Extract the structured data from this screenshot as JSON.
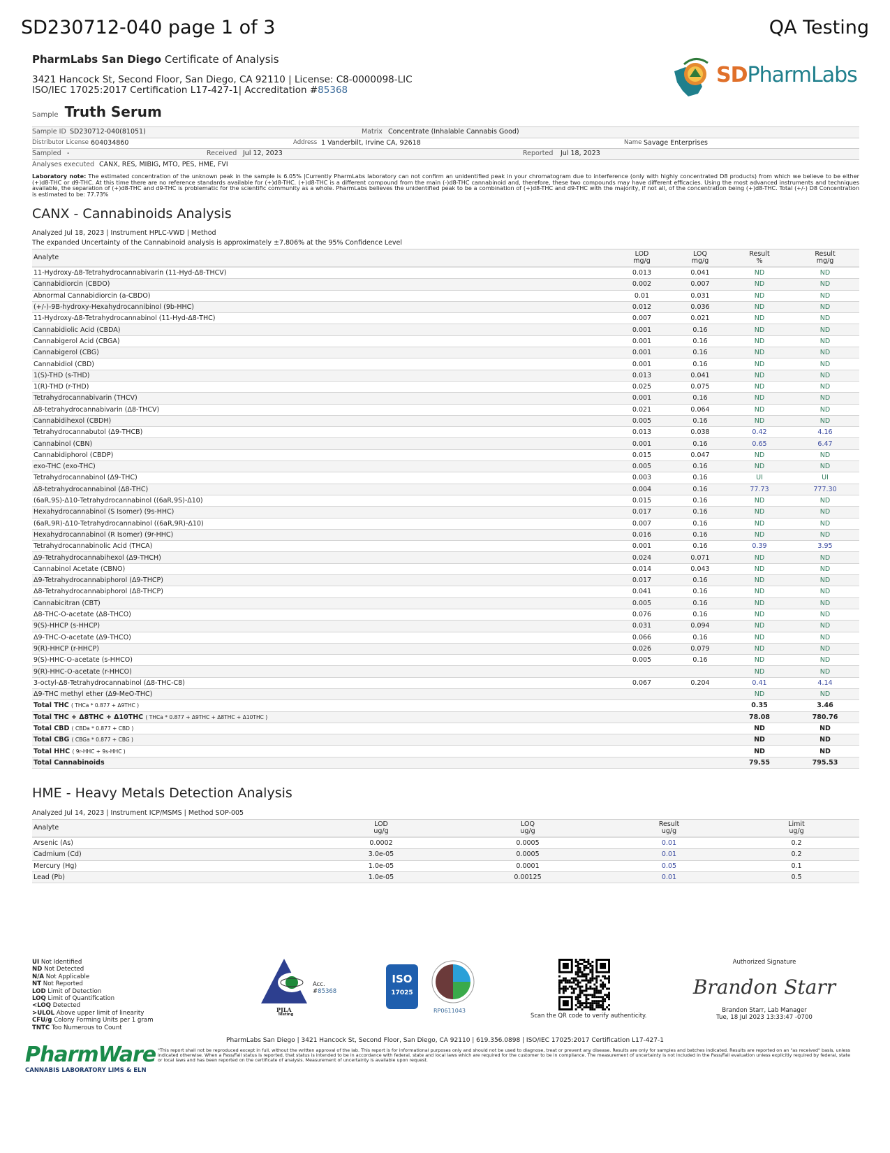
{
  "header": {
    "doc_title": "SD230712-040 page 1 of 3",
    "qa_title": "QA Testing",
    "lab_name": "PharmLabs San Diego",
    "doc_type": "Certificate of Analysis",
    "address_line": "3421 Hancock St, Second Floor, San Diego, CA 92110 |  License: C8-0000098-LIC",
    "cert_line": "ISO/IEC 17025:2017 Certification L17-427-1|  Accreditation #",
    "accreditation_no": "85368",
    "logo_text_sd": "SD",
    "logo_text_pharmlabs": "PharmLabs",
    "logo_badge_text": "PharmLabs",
    "brand_colors": {
      "orange": "#e0702a",
      "teal": "#1f7f8c"
    }
  },
  "sample": {
    "label": "Sample",
    "name": "Truth Serum",
    "id_label": "Sample ID",
    "id": "SD230712-040(81051)",
    "matrix_label": "Matrix",
    "matrix": "Concentrate (Inhalable Cannabis Good)",
    "distributor_label": "Distributor License",
    "distributor": "604034860",
    "address_label": "Address",
    "address": "1 Vanderbilt, Irvine CA, 92618",
    "name_label": "Name",
    "client_name": "Savage Enterprises",
    "sampled_label": "Sampled",
    "sampled": "-",
    "received_label": "Received",
    "received": "Jul 12, 2023",
    "reported_label": "Reported",
    "reported": "Jul 18, 2023",
    "analyses_label": "Analyses executed",
    "analyses": "CANX, RES, MIBIG, MTO, PES, HME, FVI"
  },
  "lab_note": {
    "label": "Laboratory note:",
    "text": " The estimated concentration of the unknown peak in the sample is 6.05% |Currently PharmLabs laboratory can not confirm an unidentified peak in your chromatogram due to interference (only with highly concentrated D8 products) from which we believe to be either (+)d8-THC or d9-THC. At this time there are no reference standards available for (+)d8-THC. (+)d8-THC is a different compound from the main (-)d8-THC cannabinoid and, therefore, these two compounds may have different efficacies. Using the most advanced instruments and techniques available, the separation of (+)d8-THC and d9-THC is problematic for the scientific community as a whole. PharmLabs believes the unidentified peak to be a combination of (+)d8-THC and d9-THC with the majority, if not all, of the concentration being (+)d8-THC. Total (+/-) D8 Concentration is estimated to be: 77.73%"
  },
  "canx": {
    "title": "CANX - Cannabinoids Analysis",
    "analyzed_line": "Analyzed Jul 18, 2023  |  Instrument HPLC-VWD  | Method",
    "uncertainty": "The expanded Uncertainty of the Cannabinoid analysis is approximately ±7.806% at the 95% Confidence Level",
    "columns": [
      "Analyte",
      "LOD\nmg/g",
      "LOQ\nmg/g",
      "Result\n%",
      "Result\nmg/g"
    ],
    "rows": [
      [
        "11-Hydroxy-Δ8-Tetrahydrocannabivarin (11-Hyd-Δ8-THCV)",
        "0.013",
        "0.041",
        "ND",
        "ND"
      ],
      [
        "Cannabidiorcin (CBDO)",
        "0.002",
        "0.007",
        "ND",
        "ND"
      ],
      [
        "Abnormal Cannabidiorcin (a-CBDO)",
        "0.01",
        "0.031",
        "ND",
        "ND"
      ],
      [
        "(+/-)-9B-hydroxy-Hexahydrocannibinol (9b-HHC)",
        "0.012",
        "0.036",
        "ND",
        "ND"
      ],
      [
        "11-Hydroxy-Δ8-Tetrahydrocannabinol (11-Hyd-Δ8-THC)",
        "0.007",
        "0.021",
        "ND",
        "ND"
      ],
      [
        "Cannabidiolic Acid (CBDA)",
        "0.001",
        "0.16",
        "ND",
        "ND"
      ],
      [
        "Cannabigerol Acid (CBGA)",
        "0.001",
        "0.16",
        "ND",
        "ND"
      ],
      [
        "Cannabigerol (CBG)",
        "0.001",
        "0.16",
        "ND",
        "ND"
      ],
      [
        "Cannabidiol (CBD)",
        "0.001",
        "0.16",
        "ND",
        "ND"
      ],
      [
        "1(S)-THD (s-THD)",
        "0.013",
        "0.041",
        "ND",
        "ND"
      ],
      [
        "1(R)-THD (r-THD)",
        "0.025",
        "0.075",
        "ND",
        "ND"
      ],
      [
        "Tetrahydrocannabivarin (THCV)",
        "0.001",
        "0.16",
        "ND",
        "ND"
      ],
      [
        "Δ8-tetrahydrocannabivarin (Δ8-THCV)",
        "0.021",
        "0.064",
        "ND",
        "ND"
      ],
      [
        "Cannabidihexol (CBDH)",
        "0.005",
        "0.16",
        "ND",
        "ND"
      ],
      [
        "Tetrahydrocannabutol (Δ9-THCB)",
        "0.013",
        "0.038",
        "0.42",
        "4.16"
      ],
      [
        "Cannabinol (CBN)",
        "0.001",
        "0.16",
        "0.65",
        "6.47"
      ],
      [
        "Cannabidiphorol (CBDP)",
        "0.015",
        "0.047",
        "ND",
        "ND"
      ],
      [
        "exo-THC (exo-THC)",
        "0.005",
        "0.16",
        "ND",
        "ND"
      ],
      [
        "Tetrahydrocannabinol (Δ9-THC)",
        "0.003",
        "0.16",
        "UI",
        "UI"
      ],
      [
        "Δ8-tetrahydrocannabinol (Δ8-THC)",
        "0.004",
        "0.16",
        "77.73",
        "777.30"
      ],
      [
        "(6aR,9S)-Δ10-Tetrahydrocannabinol ((6aR,9S)-Δ10)",
        "0.015",
        "0.16",
        "ND",
        "ND"
      ],
      [
        "Hexahydrocannabinol (S Isomer) (9s-HHC)",
        "0.017",
        "0.16",
        "ND",
        "ND"
      ],
      [
        "(6aR,9R)-Δ10-Tetrahydrocannabinol ((6aR,9R)-Δ10)",
        "0.007",
        "0.16",
        "ND",
        "ND"
      ],
      [
        "Hexahydrocannabinol (R Isomer) (9r-HHC)",
        "0.016",
        "0.16",
        "ND",
        "ND"
      ],
      [
        "Tetrahydrocannabinolic Acid (THCA)",
        "0.001",
        "0.16",
        "0.39",
        "3.95"
      ],
      [
        "Δ9-Tetrahydrocannabihexol (Δ9-THCH)",
        "0.024",
        "0.071",
        "ND",
        "ND"
      ],
      [
        "Cannabinol Acetate (CBNO)",
        "0.014",
        "0.043",
        "ND",
        "ND"
      ],
      [
        "Δ9-Tetrahydrocannabiphorol (Δ9-THCP)",
        "0.017",
        "0.16",
        "ND",
        "ND"
      ],
      [
        "Δ8-Tetrahydrocannabiphorol (Δ8-THCP)",
        "0.041",
        "0.16",
        "ND",
        "ND"
      ],
      [
        "Cannabicitran (CBT)",
        "0.005",
        "0.16",
        "ND",
        "ND"
      ],
      [
        "Δ8-THC-O-acetate (Δ8-THCO)",
        "0.076",
        "0.16",
        "ND",
        "ND"
      ],
      [
        "9(S)-HHCP (s-HHCP)",
        "0.031",
        "0.094",
        "ND",
        "ND"
      ],
      [
        "Δ9-THC-O-acetate (Δ9-THCO)",
        "0.066",
        "0.16",
        "ND",
        "ND"
      ],
      [
        "9(R)-HHCP (r-HHCP)",
        "0.026",
        "0.079",
        "ND",
        "ND"
      ],
      [
        "9(S)-HHC-O-acetate (s-HHCO)",
        "0.005",
        "0.16",
        "ND",
        "ND"
      ],
      [
        "9(R)-HHC-O-acetate (r-HHCO)",
        "",
        "",
        "ND",
        "ND"
      ],
      [
        "3-octyl-Δ8-Tetrahydrocannabinol (Δ8-THC-C8)",
        "0.067",
        "0.204",
        "0.41",
        "4.14"
      ],
      [
        "Δ9-THC methyl ether (Δ9-MeO-THC)",
        "",
        "",
        "ND",
        "ND"
      ]
    ],
    "totals": [
      {
        "label": "Total THC",
        "formula": "( THCa * 0.877 + Δ9THC )",
        "pct": "0.35",
        "mg": "3.46"
      },
      {
        "label": "Total THC + Δ8THC + Δ10THC",
        "formula": "( THCa * 0.877 + Δ9THC + Δ8THC + Δ10THC )",
        "pct": "78.08",
        "mg": "780.76"
      },
      {
        "label": "Total CBD",
        "formula": "( CBDa * 0.877 + CBD )",
        "pct": "ND",
        "mg": "ND"
      },
      {
        "label": "Total CBG",
        "formula": "( CBGa * 0.877 + CBG )",
        "pct": "ND",
        "mg": "ND"
      },
      {
        "label": "Total HHC",
        "formula": "( 9r-HHC + 9s-HHC )",
        "pct": "ND",
        "mg": "ND"
      },
      {
        "label": "Total Cannabinoids",
        "formula": "",
        "pct": "79.55",
        "mg": "795.53"
      }
    ]
  },
  "hme": {
    "title": "HME - Heavy Metals Detection Analysis",
    "analyzed_line": "Analyzed Jul 14, 2023  |  Instrument ICP/MSMS  | Method SOP-005",
    "columns": [
      "Analyte",
      "LOD\nug/g",
      "LOQ\nug/g",
      "Result\nug/g",
      "Limit\nug/g"
    ],
    "rows": [
      [
        "Arsenic (As)",
        "0.0002",
        "0.0005",
        "0.01",
        "0.2"
      ],
      [
        "Cadmium (Cd)",
        "3.0e-05",
        "0.0005",
        "0.01",
        "0.2"
      ],
      [
        "Mercury (Hg)",
        "1.0e-05",
        "0.0001",
        "0.05",
        "0.1"
      ],
      [
        "Lead (Pb)",
        "1.0e-05",
        "0.00125",
        "0.01",
        "0.5"
      ]
    ]
  },
  "legend": [
    [
      "UI",
      "Not Identified"
    ],
    [
      "ND",
      "Not Detected"
    ],
    [
      "N/A",
      "Not Applicable"
    ],
    [
      "NT",
      " Not Reported"
    ],
    [
      "LOD",
      "Limit of Detection"
    ],
    [
      "LOQ",
      "Limit of Quantification"
    ],
    [
      "<LOQ",
      "Detected"
    ],
    [
      ">ULOL",
      "Above upper limit of linearity"
    ],
    [
      "CFU/g",
      "Colony Forming Units per 1 gram"
    ],
    [
      "TNTC",
      "Too Numerous to Count"
    ]
  ],
  "badges": {
    "pjla_acc": "Acc. #",
    "pjla_acc_no": "85368",
    "pjla_name": "PJLA",
    "pjla_sub": "Testing",
    "iso_text": "ISO",
    "iso_no": "17025",
    "dea_no": "RP0611043",
    "qr_caption": "Scan the QR code to verify authenticity."
  },
  "signature": {
    "label": "Authorized Signature",
    "script": "Brandon Starr",
    "name_title": "Brandon Starr, Lab Manager",
    "date": "Tue, 18 Jul 2023 13:33:47 -0700"
  },
  "footer": {
    "line": "PharmLabs San Diego | 3421 Hancock St, Second Floor, San Diego, CA 92110 | 619.356.0898 | ISO/IEC 17025:2017 Certification L17-427-1",
    "disclaimer": "\"This report shall not be reproduced except in full, without the written approval of the lab. This report is for informational purposes only and should not be used to diagnose, treat or prevent any disease. Results are only for samples and batches indicated. Results are reported on an \"as received\" basis, unless indicated otherwise. When a Pass/Fail status is reported, that status is intended to be in accordance with federal, state and local laws which are required for the customer to be in compliance. The measurement of uncertainty is not included in the Pass/Fail evaluation unless explicitly required by federal, state or local laws and has been reported on the certificate of analysis. Measurement of uncertainty is available upon request.",
    "pharmware_logo": "PharmWare",
    "pharmware_sub": "CANNABIS LABORATORY LIMS & ELN"
  },
  "colors": {
    "nd": "#2f7a5a",
    "detected": "#3a4aa0",
    "link": "#3a6a9a"
  }
}
